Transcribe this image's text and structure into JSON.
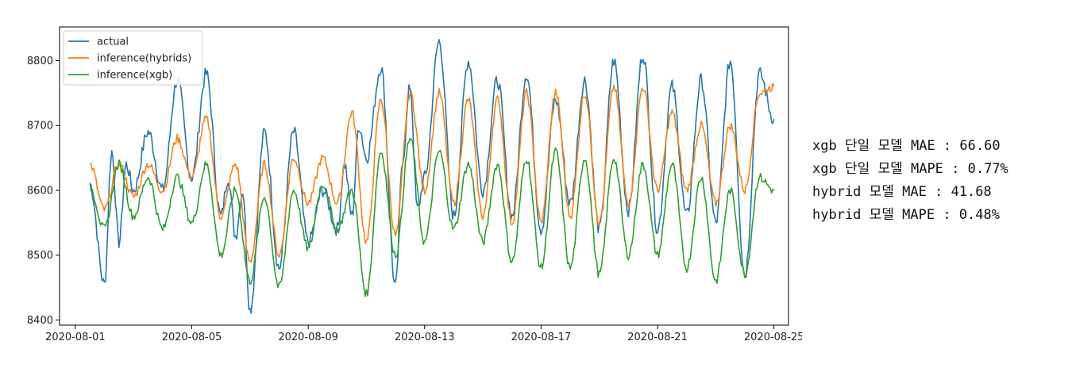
{
  "chart_data": {
    "type": "line",
    "xlabel": "",
    "ylabel": "",
    "x_range": [
      "2020-08-01 00:00",
      "2020-08-25 00:00"
    ],
    "xlim": [
      "2020-07-31 11:00",
      "2020-08-25 12:00"
    ],
    "ylim": [
      8392,
      8852
    ],
    "y_ticks": [
      8400,
      8500,
      8600,
      8700,
      8800
    ],
    "x_ticks": [
      "2020-08-01",
      "2020-08-05",
      "2020-08-09",
      "2020-08-13",
      "2020-08-17",
      "2020-08-21",
      "2020-08-25"
    ],
    "grid": false,
    "legend_position": "top-left",
    "series": [
      {
        "name": "actual",
        "color": "#1f77b4",
        "x_dates": [
          "2020-08-01 12:00",
          "2020-08-02 00:00",
          "2020-08-02 06:00",
          "2020-08-02 12:00",
          "2020-08-02 18:00",
          "2020-08-03 00:00",
          "2020-08-03 12:00",
          "2020-08-04 00:00",
          "2020-08-04 12:00",
          "2020-08-05 00:00",
          "2020-08-05 12:00",
          "2020-08-06 00:00",
          "2020-08-06 06:00",
          "2020-08-06 12:00",
          "2020-08-06 18:00",
          "2020-08-07 00:00",
          "2020-08-07 12:00",
          "2020-08-08 00:00",
          "2020-08-08 12:00",
          "2020-08-09 00:00",
          "2020-08-09 12:00",
          "2020-08-10 00:00",
          "2020-08-10 06:00",
          "2020-08-10 12:00",
          "2020-08-10 18:00",
          "2020-08-11 00:00",
          "2020-08-11 12:00",
          "2020-08-12 00:00",
          "2020-08-12 06:00",
          "2020-08-12 12:00",
          "2020-08-12 18:00",
          "2020-08-13 00:00",
          "2020-08-13 12:00",
          "2020-08-14 00:00",
          "2020-08-14 12:00",
          "2020-08-15 00:00",
          "2020-08-15 12:00",
          "2020-08-16 00:00",
          "2020-08-16 12:00",
          "2020-08-17 00:00",
          "2020-08-17 12:00",
          "2020-08-18 00:00",
          "2020-08-18 12:00",
          "2020-08-19 00:00",
          "2020-08-19 12:00",
          "2020-08-20 00:00",
          "2020-08-20 12:00",
          "2020-08-21 00:00",
          "2020-08-21 12:00",
          "2020-08-22 00:00",
          "2020-08-22 12:00",
          "2020-08-23 00:00",
          "2020-08-23 12:00",
          "2020-08-24 00:00",
          "2020-08-24 12:00",
          "2020-08-25 00:00"
        ],
        "values": [
          8610,
          8455,
          8660,
          8520,
          8640,
          8600,
          8690,
          8600,
          8770,
          8620,
          8780,
          8560,
          8620,
          8530,
          8600,
          8415,
          8690,
          8480,
          8690,
          8520,
          8600,
          8540,
          8640,
          8560,
          8700,
          8650,
          8790,
          8450,
          8650,
          8760,
          8570,
          8620,
          8830,
          8560,
          8800,
          8600,
          8770,
          8560,
          8780,
          8540,
          8740,
          8580,
          8770,
          8540,
          8800,
          8570,
          8810,
          8540,
          8760,
          8560,
          8770,
          8550,
          8800,
          8470,
          8780,
          8710
        ]
      },
      {
        "name": "inference(hybrids)",
        "color": "#ff7f0e",
        "x_dates": [
          "2020-08-01 12:00",
          "2020-08-02 00:00",
          "2020-08-02 12:00",
          "2020-08-03 00:00",
          "2020-08-03 12:00",
          "2020-08-04 00:00",
          "2020-08-04 12:00",
          "2020-08-05 00:00",
          "2020-08-05 12:00",
          "2020-08-06 00:00",
          "2020-08-06 12:00",
          "2020-08-07 00:00",
          "2020-08-07 12:00",
          "2020-08-08 00:00",
          "2020-08-08 12:00",
          "2020-08-09 00:00",
          "2020-08-09 12:00",
          "2020-08-10 00:00",
          "2020-08-10 12:00",
          "2020-08-11 00:00",
          "2020-08-11 12:00",
          "2020-08-12 00:00",
          "2020-08-12 12:00",
          "2020-08-13 00:00",
          "2020-08-13 12:00",
          "2020-08-14 00:00",
          "2020-08-14 12:00",
          "2020-08-15 00:00",
          "2020-08-15 12:00",
          "2020-08-16 00:00",
          "2020-08-16 12:00",
          "2020-08-17 00:00",
          "2020-08-17 12:00",
          "2020-08-18 00:00",
          "2020-08-18 12:00",
          "2020-08-19 00:00",
          "2020-08-19 12:00",
          "2020-08-20 00:00",
          "2020-08-20 12:00",
          "2020-08-21 00:00",
          "2020-08-21 12:00",
          "2020-08-22 00:00",
          "2020-08-22 12:00",
          "2020-08-23 00:00",
          "2020-08-23 12:00",
          "2020-08-24 00:00",
          "2020-08-24 12:00",
          "2020-08-25 00:00"
        ],
        "values": [
          8640,
          8570,
          8640,
          8590,
          8640,
          8600,
          8680,
          8620,
          8710,
          8560,
          8640,
          8490,
          8640,
          8500,
          8650,
          8580,
          8650,
          8580,
          8720,
          8520,
          8740,
          8530,
          8750,
          8600,
          8750,
          8580,
          8740,
          8560,
          8740,
          8550,
          8750,
          8550,
          8750,
          8560,
          8750,
          8550,
          8760,
          8580,
          8760,
          8600,
          8720,
          8600,
          8700,
          8580,
          8700,
          8600,
          8750,
          8760
        ]
      },
      {
        "name": "inference(xgb)",
        "color": "#2ca02c",
        "x_dates": [
          "2020-08-01 12:00",
          "2020-08-02 00:00",
          "2020-08-02 12:00",
          "2020-08-03 00:00",
          "2020-08-03 12:00",
          "2020-08-04 00:00",
          "2020-08-04 12:00",
          "2020-08-05 00:00",
          "2020-08-05 12:00",
          "2020-08-06 00:00",
          "2020-08-06 12:00",
          "2020-08-07 00:00",
          "2020-08-07 12:00",
          "2020-08-08 00:00",
          "2020-08-08 12:00",
          "2020-08-09 00:00",
          "2020-08-09 12:00",
          "2020-08-10 00:00",
          "2020-08-10 12:00",
          "2020-08-11 00:00",
          "2020-08-11 12:00",
          "2020-08-12 00:00",
          "2020-08-12 12:00",
          "2020-08-13 00:00",
          "2020-08-13 12:00",
          "2020-08-14 00:00",
          "2020-08-14 12:00",
          "2020-08-15 00:00",
          "2020-08-15 12:00",
          "2020-08-16 00:00",
          "2020-08-16 12:00",
          "2020-08-17 00:00",
          "2020-08-17 12:00",
          "2020-08-18 00:00",
          "2020-08-18 12:00",
          "2020-08-19 00:00",
          "2020-08-19 12:00",
          "2020-08-20 00:00",
          "2020-08-20 12:00",
          "2020-08-21 00:00",
          "2020-08-21 12:00",
          "2020-08-22 00:00",
          "2020-08-22 12:00",
          "2020-08-23 00:00",
          "2020-08-23 12:00",
          "2020-08-24 00:00",
          "2020-08-24 12:00",
          "2020-08-25 00:00"
        ],
        "values": [
          8605,
          8540,
          8640,
          8560,
          8620,
          8540,
          8620,
          8550,
          8640,
          8500,
          8600,
          8460,
          8590,
          8450,
          8600,
          8510,
          8610,
          8540,
          8600,
          8440,
          8660,
          8500,
          8680,
          8520,
          8660,
          8540,
          8640,
          8520,
          8640,
          8490,
          8650,
          8480,
          8660,
          8480,
          8650,
          8470,
          8650,
          8500,
          8640,
          8500,
          8640,
          8480,
          8620,
          8460,
          8600,
          8470,
          8620,
          8600
        ]
      }
    ]
  },
  "metrics": [
    "xgb 단일 모델 MAE : 66.60",
    "xgb 단일 모델 MAPE : 0.77%",
    "hybrid 모델 MAE : 41.68",
    "hybrid 모델 MAPE : 0.48%"
  ]
}
